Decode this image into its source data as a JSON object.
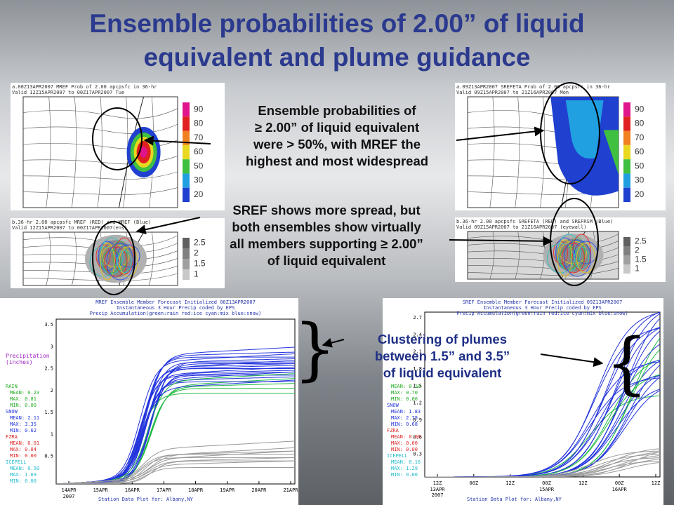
{
  "title": {
    "lines": [
      "Ensemble probabilities of 2.00” of liquid",
      "equivalent and plume guidance"
    ]
  },
  "callouts": [
    {
      "lines": [
        "Ensemble probabilities of",
        "≥ 2.00” of liquid equivalent",
        "were > 50%, with MREF the",
        "highest and most widespread"
      ]
    },
    {
      "lines": [
        "SREF shows more spread, but",
        "both ensembles show virtually",
        "all members supporting ≥ 2.00”",
        "of liquid equivalent"
      ]
    },
    {
      "lines": [
        "Clustering of plumes",
        "between 1.5” and 3.5”",
        "of liquid equivalent"
      ]
    }
  ],
  "braces": [
    "}",
    "{"
  ],
  "maps": [
    {
      "header": [
        "a.00Z13APR2007 MREF Prob of 2.00 apcpsfc in 36-hr",
        "Valid 12Z15APR2007 to 00Z17APR2007 Tue"
      ],
      "colorbar": [
        "90",
        "80",
        "70",
        "60",
        "50",
        "30",
        "20"
      ]
    },
    {
      "header": [
        "b.36-hr 2.00 apcpsfc MREF (RED) and MREF (Blue)",
        "Valid 12Z15APR2007 to 00Z17APR2007(ens)"
      ],
      "colorbar": [
        "2.5",
        "2",
        "1.5",
        "1"
      ]
    },
    {
      "header": [
        "a.09Z13APR2007 SREFETA Prob of 2.00 apcpsfc in 36-hr",
        "Valid 09Z15APR2007 to 21Z16APR2007 Mon"
      ],
      "colorbar": [
        "90",
        "80",
        "70",
        "60",
        "50",
        "30",
        "20"
      ]
    },
    {
      "header": [
        "b.36-hr 2.00 apcpsfc SREFETA (RED) and SREFRSM (Blue)",
        "Valid 09Z15APR2007 to 21Z16APR2007 (eyewall)"
      ],
      "colorbar": [
        "2.5",
        "2",
        "1.5",
        "1"
      ]
    }
  ],
  "plumes": [
    {
      "header": [
        "MREF Ensemble Member Forecast Initialized 00Z13APR2007",
        "Instantaneous 3 Hour Precip coded by EPS",
        "Precip Accumulation(green:rain red:ice cyan:mix blue:snow)"
      ],
      "yaxis": [
        "3.5",
        "3",
        "2.5",
        "2",
        "1.5",
        "1",
        "0.5"
      ],
      "xaxis": [
        "14APR",
        "15APR",
        "16APR",
        "17APR",
        "18APR",
        "19APR",
        "20APR",
        "21APR"
      ],
      "year": "2007",
      "legend_title": [
        "Precipitation",
        "(inches)"
      ],
      "legend": [
        "RAIN",
        "MEAN: 0.23",
        "MAX: 0.81",
        "MIN: 0.00",
        "SNOW",
        "MEAN: 2.11",
        "MAX: 3.35",
        "MIN: 0.62",
        "FZRA",
        "MEAN: 0.01",
        "MAX: 0.04",
        "MIN: 0.00",
        "ICEPELL",
        "MEAN: 0.50",
        "MAX: 1.69",
        "MIN: 0.00"
      ],
      "footer": "Station Data Plot for: Albany,NY"
    },
    {
      "header": [
        "SREF Ensemble Member Forecast Initialized 09Z13APR2007",
        "Instantaneous 3 Hour Precip coded by EPS",
        "Precip Accumulation(green:rain red:ice cyan:mix blue:snow)"
      ],
      "yaxis": [
        "2.7",
        "2.4",
        "2.1",
        "1.8",
        "1.5",
        "1.2",
        "0.9",
        "0.6",
        "0.3"
      ],
      "xaxis": [
        "12Z",
        "00Z",
        "12Z",
        "00Z",
        "12Z",
        "00Z",
        "12Z"
      ],
      "xaxis2": [
        "13APR",
        "15APR",
        "16APR"
      ],
      "year": "2007",
      "legend": [
        "MEAN: 0.10",
        "MAX: 0.70",
        "MIN: 0.00",
        "SNOW",
        "MEAN: 1.83",
        "MAX: 2.79",
        "MIN: 0.68",
        "FZRA",
        "MEAN: 0.00",
        "MAX: 0.00",
        "MIN: 0.00",
        "ICEPELL",
        "MEAN: 0.16",
        "MAX: 1.29",
        "MIN: 0.00"
      ],
      "footer": "Station Data Plot for: Albany,NY"
    }
  ]
}
